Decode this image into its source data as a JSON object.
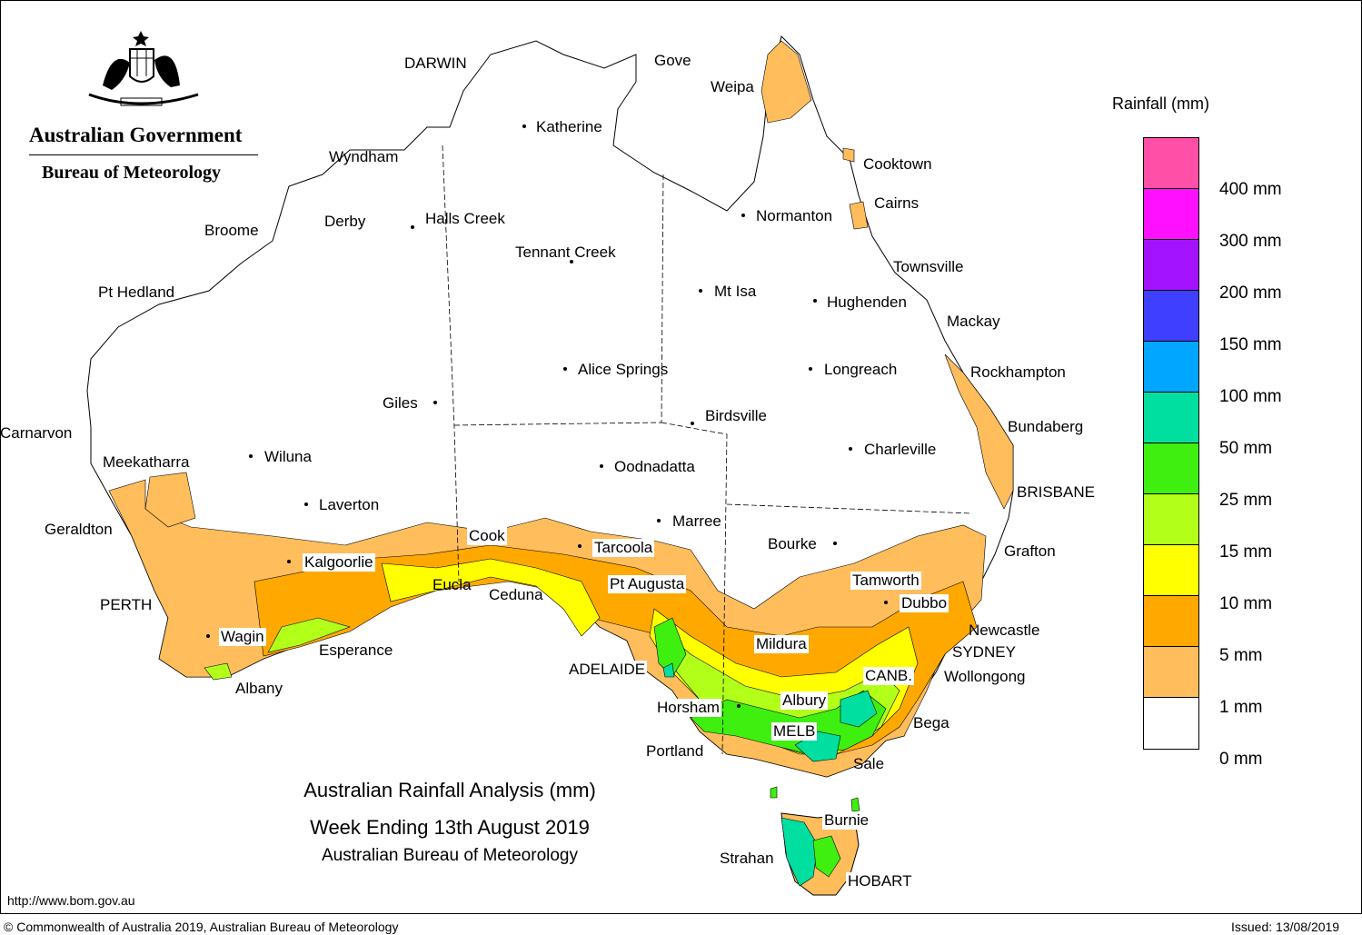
{
  "header": {
    "government": "Australian Government",
    "bureau": "Bureau of Meteorology",
    "crest_icon": "coat-of-arms-icon"
  },
  "title": {
    "line1": "Australian Rainfall Analysis (mm)",
    "line2": "Week Ending 13th August 2019",
    "line3": "Australian Bureau of Meteorology"
  },
  "legend": {
    "title": "Rainfall (mm)",
    "colors": [
      "#ff4fa6",
      "#ff10ff",
      "#a313ff",
      "#3f3fff",
      "#00a6ff",
      "#00df9f",
      "#3fef0f",
      "#b2ff1a",
      "#ffff00",
      "#ffa800",
      "#ffbd5c",
      "#ffffff"
    ],
    "labels": [
      "400 mm",
      "300 mm",
      "200 mm",
      "150 mm",
      "100 mm",
      "50 mm",
      "25 mm",
      "15 mm",
      "10 mm",
      "5 mm",
      "1 mm",
      "0 mm"
    ]
  },
  "places": [
    {
      "name": "DARWIN"
    },
    {
      "name": "Gove"
    },
    {
      "name": "Weipa"
    },
    {
      "name": "Katherine"
    },
    {
      "name": "Wyndham"
    },
    {
      "name": "Cooktown"
    },
    {
      "name": "Cairns"
    },
    {
      "name": "Normanton"
    },
    {
      "name": "Derby"
    },
    {
      "name": "Halls Creek"
    },
    {
      "name": "Broome"
    },
    {
      "name": "Tennant Creek"
    },
    {
      "name": "Townsville"
    },
    {
      "name": "Pt Hedland"
    },
    {
      "name": "Mt Isa"
    },
    {
      "name": "Hughenden"
    },
    {
      "name": "Mackay"
    },
    {
      "name": "Alice Springs"
    },
    {
      "name": "Longreach"
    },
    {
      "name": "Rockhampton"
    },
    {
      "name": "Giles"
    },
    {
      "name": "Birdsville"
    },
    {
      "name": "Bundaberg"
    },
    {
      "name": "Carnarvon"
    },
    {
      "name": "Charleville"
    },
    {
      "name": "Meekatharra"
    },
    {
      "name": "Wiluna"
    },
    {
      "name": "Oodnadatta"
    },
    {
      "name": "BRISBANE"
    },
    {
      "name": "Laverton"
    },
    {
      "name": "Marree"
    },
    {
      "name": "Geraldton"
    },
    {
      "name": "Cook"
    },
    {
      "name": "Bourke"
    },
    {
      "name": "Tarcoola"
    },
    {
      "name": "Grafton"
    },
    {
      "name": "Kalgoorlie"
    },
    {
      "name": "Tamworth"
    },
    {
      "name": "Pt Augusta"
    },
    {
      "name": "Eucla"
    },
    {
      "name": "Ceduna"
    },
    {
      "name": "PERTH"
    },
    {
      "name": "Dubbo"
    },
    {
      "name": "Newcastle"
    },
    {
      "name": "Wagin"
    },
    {
      "name": "Esperance"
    },
    {
      "name": "Mildura"
    },
    {
      "name": "SYDNEY"
    },
    {
      "name": "ADELAIDE"
    },
    {
      "name": "CANB."
    },
    {
      "name": "Wollongong"
    },
    {
      "name": "Albany"
    },
    {
      "name": "Horsham"
    },
    {
      "name": "Albury"
    },
    {
      "name": "Bega"
    },
    {
      "name": "MELB"
    },
    {
      "name": "Portland"
    },
    {
      "name": "Sale"
    },
    {
      "name": "Burnie"
    },
    {
      "name": "Strahan"
    },
    {
      "name": "HOBART"
    }
  ],
  "footer": {
    "url": "http://www.bom.gov.au",
    "copyright": "© Commonwealth of Australia 2019, Australian Bureau of Meteorology",
    "issued": "Issued: 13/08/2019"
  }
}
